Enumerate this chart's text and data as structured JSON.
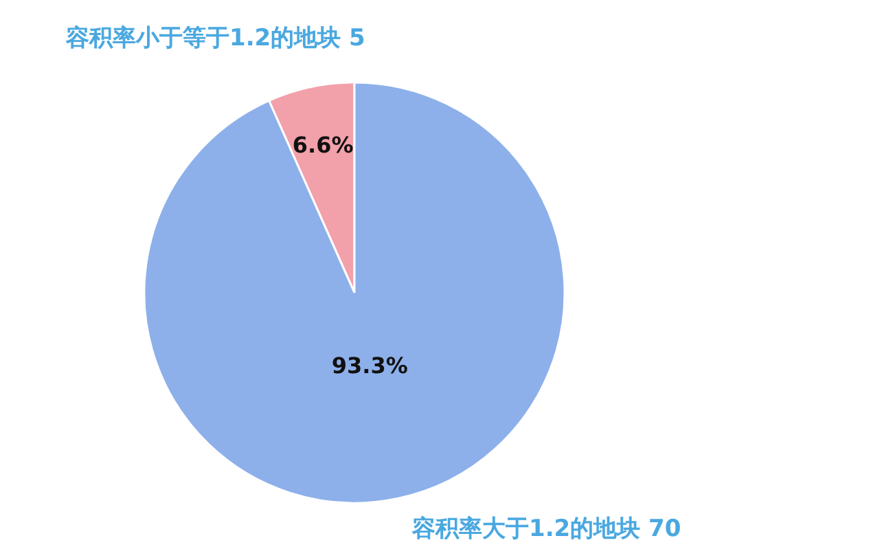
{
  "chart_data": {
    "type": "pie",
    "categories": [
      "容积率小于等于1.2的地块 5",
      "容积率大于1.2的地块 70"
    ],
    "values": [
      5,
      70
    ],
    "colors": [
      "#f2a0aa",
      "#8db0ea"
    ],
    "annotations": [
      "6.6%",
      "93.3%"
    ]
  }
}
